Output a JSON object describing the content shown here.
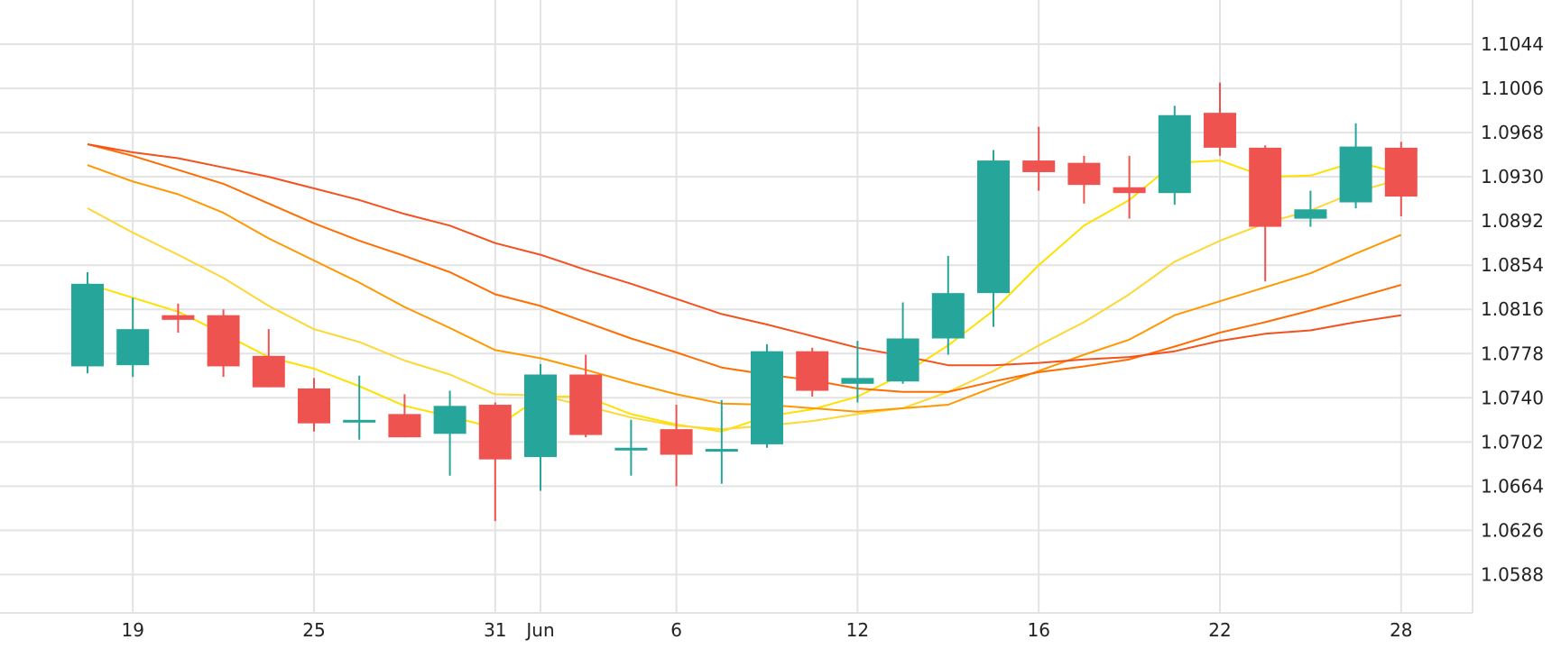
{
  "chart_data": {
    "type": "candlestick",
    "title": "",
    "xlabel": "",
    "ylabel": "",
    "ylim": [
      1.0555,
      1.1082
    ],
    "grid": true,
    "y_ticks": [
      "1.1044",
      "1.1006",
      "1.0968",
      "1.0930",
      "1.0892",
      "1.0854",
      "1.0816",
      "1.0778",
      "1.0740",
      "1.0702",
      "1.0664",
      "1.0626",
      "1.0588"
    ],
    "x_ticks": [
      {
        "label": "19",
        "candle": 1
      },
      {
        "label": "25",
        "candle": 5
      },
      {
        "label": "31",
        "candle": 9
      },
      {
        "label": "Jun",
        "candle": 10
      },
      {
        "label": "6",
        "candle": 13
      },
      {
        "label": "12",
        "candle": 17
      },
      {
        "label": "16",
        "candle": 21
      },
      {
        "label": "22",
        "candle": 25
      },
      {
        "label": "28",
        "candle": 29
      }
    ],
    "candles": [
      {
        "open": 1.0767,
        "high": 1.0848,
        "low": 1.0761,
        "close": 1.0838
      },
      {
        "open": 1.0768,
        "high": 1.0826,
        "low": 1.0758,
        "close": 1.0799
      },
      {
        "open": 1.0811,
        "high": 1.0821,
        "low": 1.0796,
        "close": 1.0807
      },
      {
        "open": 1.0811,
        "high": 1.0816,
        "low": 1.0758,
        "close": 1.0767
      },
      {
        "open": 1.0776,
        "high": 1.0799,
        "low": 1.0749,
        "close": 1.0749
      },
      {
        "open": 1.0748,
        "high": 1.0757,
        "low": 1.0711,
        "close": 1.0718
      },
      {
        "open": 1.0721,
        "high": 1.0759,
        "low": 1.0704,
        "close": 1.0721
      },
      {
        "open": 1.0726,
        "high": 1.0743,
        "low": 1.0706,
        "close": 1.0706
      },
      {
        "open": 1.0709,
        "high": 1.0746,
        "low": 1.0673,
        "close": 1.0733
      },
      {
        "open": 1.0734,
        "high": 1.0736,
        "low": 1.0634,
        "close": 1.0687
      },
      {
        "open": 1.0689,
        "high": 1.0769,
        "low": 1.066,
        "close": 1.076
      },
      {
        "open": 1.076,
        "high": 1.0777,
        "low": 1.0706,
        "close": 1.0708
      },
      {
        "open": 1.0697,
        "high": 1.0721,
        "low": 1.0673,
        "close": 1.0697
      },
      {
        "open": 1.0713,
        "high": 1.0734,
        "low": 1.0664,
        "close": 1.0691
      },
      {
        "open": 1.0696,
        "high": 1.0738,
        "low": 1.0666,
        "close": 1.0696
      },
      {
        "open": 1.07,
        "high": 1.0786,
        "low": 1.0697,
        "close": 1.078
      },
      {
        "open": 1.078,
        "high": 1.0783,
        "low": 1.0741,
        "close": 1.0746
      },
      {
        "open": 1.0752,
        "high": 1.0789,
        "low": 1.0736,
        "close": 1.0757
      },
      {
        "open": 1.0754,
        "high": 1.0822,
        "low": 1.0752,
        "close": 1.0791
      },
      {
        "open": 1.0791,
        "high": 1.0862,
        "low": 1.0777,
        "close": 1.083
      },
      {
        "open": 1.083,
        "high": 1.0953,
        "low": 1.0801,
        "close": 1.0944
      },
      {
        "open": 1.0944,
        "high": 1.0973,
        "low": 1.0918,
        "close": 1.0934
      },
      {
        "open": 1.0942,
        "high": 1.0948,
        "low": 1.0907,
        "close": 1.0923
      },
      {
        "open": 1.0921,
        "high": 1.0948,
        "low": 1.0894,
        "close": 1.0916
      },
      {
        "open": 1.0916,
        "high": 1.0991,
        "low": 1.0906,
        "close": 1.0983
      },
      {
        "open": 1.0985,
        "high": 1.1011,
        "low": 1.0948,
        "close": 1.0955
      },
      {
        "open": 1.0955,
        "high": 1.0957,
        "low": 1.084,
        "close": 1.0887
      },
      {
        "open": 1.0894,
        "high": 1.0918,
        "low": 1.0887,
        "close": 1.0902
      },
      {
        "open": 1.0908,
        "high": 1.0976,
        "low": 1.0903,
        "close": 1.0956
      },
      {
        "open": 1.0955,
        "high": 1.096,
        "low": 1.0896,
        "close": 1.0913
      }
    ],
    "overlay_lines": [
      {
        "color": "#ffe000",
        "values": [
          null,
          null,
          null,
          null,
          null,
          null,
          null,
          null,
          null,
          null,
          null,
          null,
          null,
          null,
          null,
          null,
          null,
          null,
          null,
          null,
          null,
          null,
          null,
          null,
          null,
          null,
          null,
          null,
          null,
          null
        ]
      },
      {
        "color": "#ffe000",
        "values": [
          1.0838,
          1.0826,
          1.0814,
          1.0795,
          1.0775,
          1.0765,
          1.075,
          1.0733,
          1.0724,
          1.0714,
          1.0741,
          1.0741,
          1.0726,
          1.0717,
          1.0711,
          1.0724,
          1.073,
          1.0741,
          1.076,
          1.0785,
          1.0815,
          1.0854,
          1.0888,
          1.091,
          1.0942,
          1.0944,
          1.093,
          1.0931,
          1.0943,
          1.0933
        ]
      },
      {
        "color": "#fdd835",
        "values": [
          1.0903,
          1.0882,
          1.0863,
          1.0843,
          1.0819,
          1.0799,
          1.0788,
          1.0772,
          1.076,
          1.0743,
          1.0742,
          1.0733,
          1.0723,
          1.0716,
          1.0713,
          1.0716,
          1.072,
          1.0726,
          1.0731,
          1.0745,
          1.0763,
          1.0785,
          1.0805,
          1.0829,
          1.0857,
          1.0875,
          1.089,
          1.0901,
          1.0917,
          1.0928
        ]
      },
      {
        "color": "#ff9800",
        "values": [
          1.094,
          1.0926,
          1.0915,
          1.0899,
          1.0877,
          1.0858,
          1.0839,
          1.0818,
          1.08,
          1.0781,
          1.0774,
          1.0764,
          1.0753,
          1.0743,
          1.0735,
          1.0734,
          1.0731,
          1.0728,
          1.0731,
          1.0734,
          1.0749,
          1.0763,
          1.0777,
          1.079,
          1.0811,
          1.0823,
          1.0835,
          1.0847,
          1.0864,
          1.088
        ]
      },
      {
        "color": "#ff6d00",
        "values": [
          1.0958,
          1.0948,
          1.0936,
          1.0924,
          1.0907,
          1.089,
          1.0875,
          1.0862,
          1.0848,
          1.0829,
          1.0819,
          1.0805,
          1.0791,
          1.0779,
          1.0766,
          1.076,
          1.0755,
          1.0748,
          1.0745,
          1.0745,
          1.0754,
          1.0762,
          1.0767,
          1.0773,
          1.0784,
          1.0796,
          1.0805,
          1.0815,
          1.0826,
          1.0837
        ]
      },
      {
        "color": "#f4511e",
        "values": [
          1.0958,
          1.0951,
          1.0946,
          1.0938,
          1.093,
          1.092,
          1.091,
          1.0898,
          1.0888,
          1.0873,
          1.0863,
          1.085,
          1.0838,
          1.0825,
          1.0812,
          1.0803,
          1.0793,
          1.0783,
          1.0776,
          1.0768,
          1.0768,
          1.077,
          1.0773,
          1.0775,
          1.078,
          1.0789,
          1.0795,
          1.0798,
          1.0805,
          1.0811
        ]
      }
    ],
    "colors": {
      "up": "#26a69a",
      "down": "#ef5350",
      "grid": "#e3e3e3",
      "axis_text": "#222222"
    }
  }
}
